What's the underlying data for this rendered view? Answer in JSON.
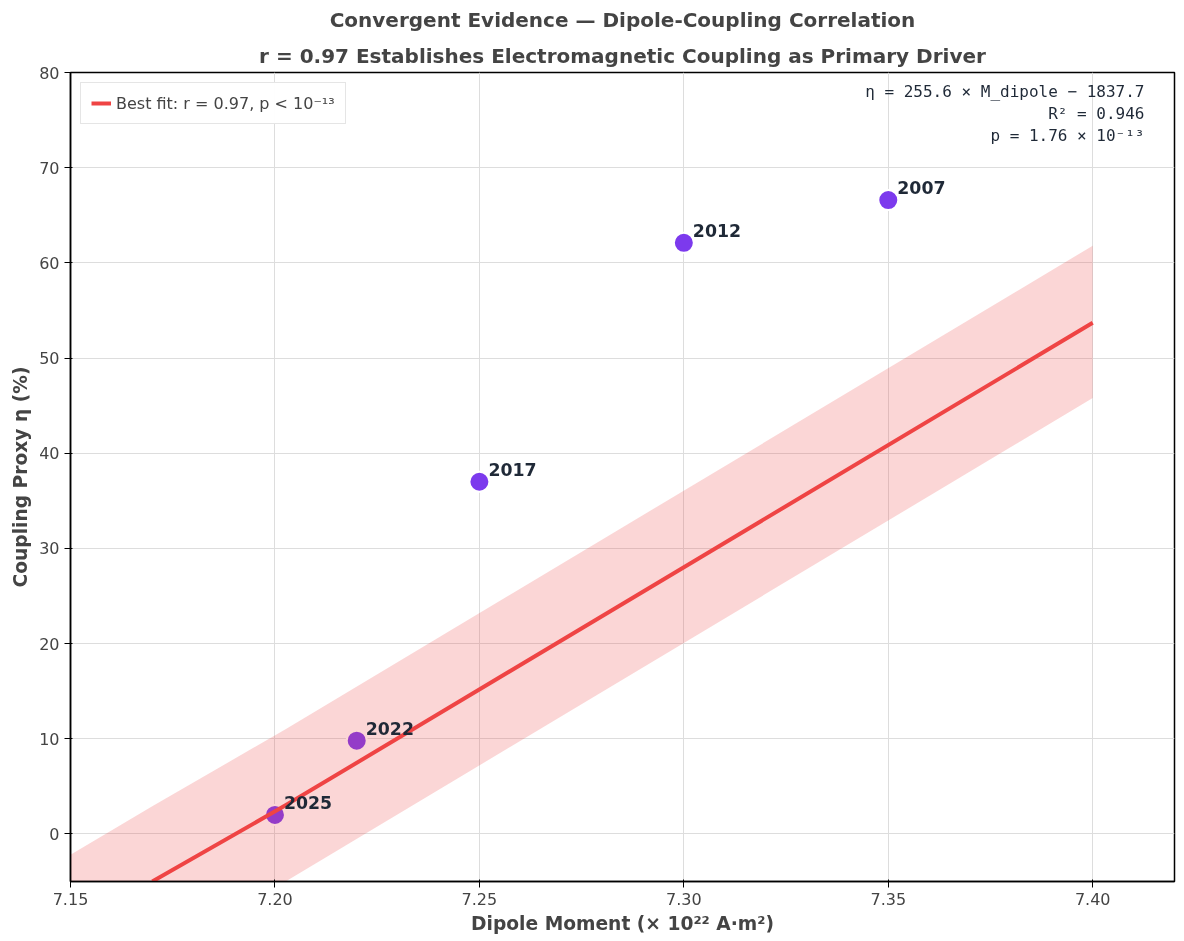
{
  "chart_data": {
    "type": "scatter",
    "title": "Convergent Evidence — Dipole-Coupling Correlation",
    "subtitle": "r = 0.97 Establishes Electromagnetic Coupling as Primary Driver",
    "xlabel": "Dipole Moment (× 10²² A·m²)",
    "ylabel": "Coupling Proxy η (%)",
    "x": [
      7.2,
      7.22,
      7.25,
      7.3,
      7.35
    ],
    "series": [
      {
        "color": "#7c3aed",
        "marker": "circle",
        "values": [
          2.0,
          9.8,
          37.0,
          62.1,
          66.6
        ]
      },
      {
        "type": "line",
        "name": "Best fit: r = 0.97, p < 10⁻¹³",
        "color": "#ef4444",
        "x": [
          7.15,
          7.17,
          7.2026,
          7.4
        ],
        "values": [
          null,
          -5,
          3,
          53.7
        ],
        "upper": [
          -2.2,
          2.9,
          11,
          61.8
        ],
        "lower": [
          -5,
          -5,
          -5,
          45.8
        ]
      }
    ],
    "annotations": [
      {
        "text": "2025",
        "x": 7.2,
        "y": 2.0
      },
      {
        "text": "2022",
        "x": 7.22,
        "y": 9.8
      },
      {
        "text": "2017",
        "x": 7.25,
        "y": 37.0
      },
      {
        "text": "2012",
        "x": 7.3,
        "y": 62.1
      },
      {
        "text": "2007",
        "x": 7.35,
        "y": 66.6
      },
      "η = 255.6 × M_dipole − 1837.7",
      "R² = 0.946",
      "p = 1.76 × 10⁻¹³"
    ],
    "xlim": [
      7.15,
      7.42
    ],
    "xticks": [
      {
        "value": 7.15,
        "label": "7.15"
      },
      {
        "value": 7.2,
        "label": "7.20"
      },
      {
        "value": 7.25,
        "label": "7.25"
      },
      {
        "value": 7.3,
        "label": "7.30"
      },
      {
        "value": 7.35,
        "label": "7.35"
      },
      {
        "value": 7.4,
        "label": "7.40"
      }
    ],
    "ylim": [
      -5,
      80
    ],
    "yticks": [
      0,
      10,
      20,
      30,
      40,
      50,
      60,
      70,
      80
    ],
    "grid": true,
    "legend": "top left",
    "line_style": "solid"
  }
}
